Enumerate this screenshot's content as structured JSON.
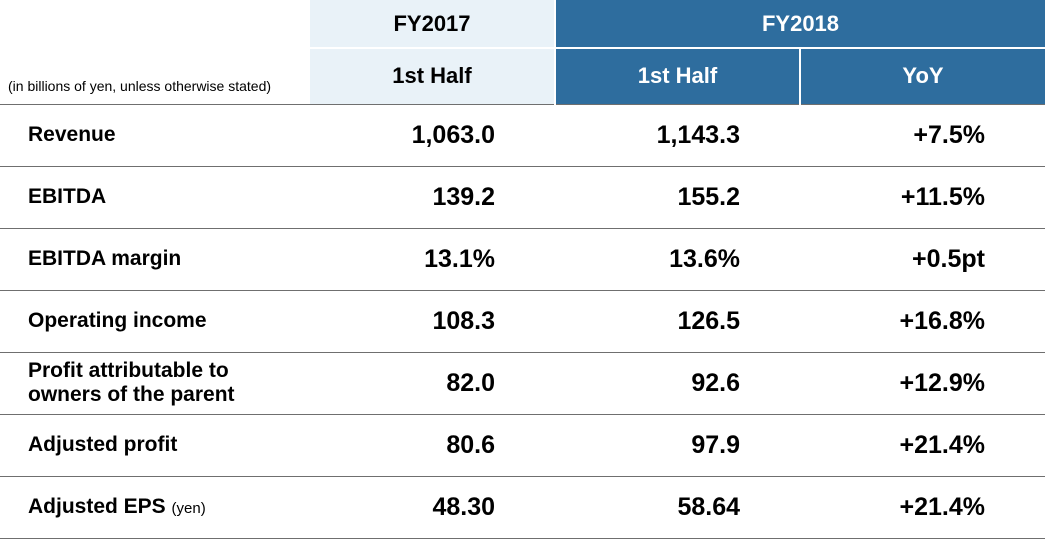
{
  "note": "(in billions of yen, unless otherwise stated)",
  "header": {
    "fy2017": "FY2017",
    "fy2018": "FY2018",
    "h1a": "1st Half",
    "h1b": "1st Half",
    "yoy": "YoY"
  },
  "rows": [
    {
      "label": "Revenue",
      "sub": "",
      "v17": "1,063.0",
      "v18": "1,143.3",
      "yoy": "+7.5%"
    },
    {
      "label": "EBITDA",
      "sub": "",
      "v17": "139.2",
      "v18": "155.2",
      "yoy": "+11.5%"
    },
    {
      "label": "EBITDA margin",
      "sub": "",
      "v17": "13.1%",
      "v18": "13.6%",
      "yoy": "+0.5pt"
    },
    {
      "label": "Operating income",
      "sub": "",
      "v17": "108.3",
      "v18": "126.5",
      "yoy": "+16.8%"
    },
    {
      "label": "Profit attributable to\nowners of the parent",
      "sub": "",
      "v17": "82.0",
      "v18": "92.6",
      "yoy": "+12.9%"
    },
    {
      "label": "Adjusted profit",
      "sub": "",
      "v17": "80.6",
      "v18": "97.9",
      "yoy": "+21.4%"
    },
    {
      "label": "Adjusted EPS",
      "sub": "(yen)",
      "v17": "48.30",
      "v18": "58.64",
      "yoy": "+21.4%"
    }
  ],
  "colors": {
    "fy2017_bg": "#e9f2f8",
    "fy2018_bg": "#2e6d9e",
    "fy2018_text": "#ffffff",
    "rule": "#6f6f6f"
  }
}
